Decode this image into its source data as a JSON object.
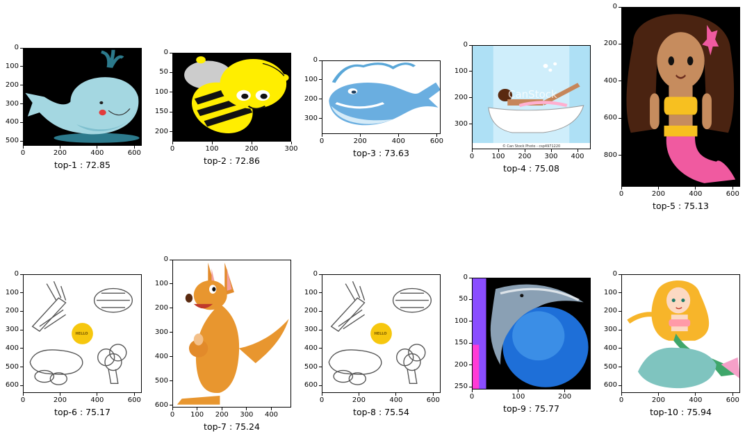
{
  "chart_data": [
    {
      "type": "image",
      "rank": 1,
      "score": 72.85,
      "caption": "top-1 : 72.85",
      "xticks": [
        0,
        200,
        400,
        600
      ],
      "yticks": [
        0,
        100,
        200,
        300,
        400,
        500
      ],
      "xlim": [
        0,
        640
      ],
      "ylim": [
        0,
        525
      ],
      "bg": "#000000",
      "icon": "cartoon-whale-icon"
    },
    {
      "type": "image",
      "rank": 2,
      "score": 72.86,
      "caption": "top-2 : 72.86",
      "xticks": [
        0,
        100,
        200,
        300
      ],
      "yticks": [
        0,
        50,
        100,
        150,
        200
      ],
      "xlim": [
        0,
        300
      ],
      "ylim": [
        0,
        225
      ],
      "bg": "#000000",
      "icon": "cartoon-bee-icon"
    },
    {
      "type": "image",
      "rank": 3,
      "score": 73.63,
      "caption": "top-3 : 73.63",
      "xticks": [
        0,
        200,
        400,
        600
      ],
      "yticks": [
        0,
        100,
        200,
        300
      ],
      "xlim": [
        0,
        620
      ],
      "ylim": [
        0,
        380
      ],
      "bg": "#ffffff",
      "icon": "blue-whale-icon"
    },
    {
      "type": "image",
      "rank": 4,
      "score": 75.08,
      "caption": "top-4 : 75.08",
      "xticks": [
        0,
        100,
        200,
        300,
        400
      ],
      "yticks": [
        0,
        100,
        200,
        300
      ],
      "xlim": [
        0,
        450
      ],
      "ylim": [
        0,
        395
      ],
      "bg": "#aee0f5",
      "icon": "bathtub-girl-icon",
      "watermark": "CanStock",
      "footer": "© Can Stock Photo - csp4971220"
    },
    {
      "type": "image",
      "rank": 5,
      "score": 75.13,
      "caption": "top-5 : 75.13",
      "xticks": [
        0,
        200,
        400,
        600
      ],
      "yticks": [
        0,
        200,
        400,
        600,
        800
      ],
      "xlim": [
        0,
        640
      ],
      "ylim": [
        0,
        970
      ],
      "bg": "#000000",
      "icon": "mermaid-girl-icon"
    },
    {
      "type": "image",
      "rank": 6,
      "score": 75.17,
      "caption": "top-6 : 75.17",
      "xticks": [
        0,
        200,
        400,
        600
      ],
      "yticks": [
        0,
        100,
        200,
        300,
        400,
        500,
        600
      ],
      "xlim": [
        0,
        640
      ],
      "ylim": [
        0,
        640
      ],
      "bg": "#ffffff",
      "icon": "vegetable-sketch-icon",
      "badge": "HELLO"
    },
    {
      "type": "image",
      "rank": 7,
      "score": 75.24,
      "caption": "top-7 : 75.24",
      "xticks": [
        0,
        100,
        200,
        300,
        400
      ],
      "yticks": [
        0,
        100,
        200,
        300,
        400,
        500,
        600
      ],
      "xlim": [
        0,
        480
      ],
      "ylim": [
        0,
        610
      ],
      "bg": "#ffffff",
      "icon": "kangaroo-icon"
    },
    {
      "type": "image",
      "rank": 8,
      "score": 75.54,
      "caption": "top-8 : 75.54",
      "xticks": [
        0,
        200,
        400,
        600
      ],
      "yticks": [
        0,
        100,
        200,
        300,
        400,
        500,
        600
      ],
      "xlim": [
        0,
        640
      ],
      "ylim": [
        0,
        640
      ],
      "bg": "#ffffff",
      "icon": "vegetable-sketch-icon",
      "badge": "HELLO"
    },
    {
      "type": "image",
      "rank": 9,
      "score": 75.77,
      "caption": "top-9 : 75.77",
      "xticks": [
        0,
        100,
        200
      ],
      "yticks": [
        0,
        50,
        100,
        150,
        200,
        250
      ],
      "xlim": [
        0,
        256
      ],
      "ylim": [
        0,
        256
      ],
      "bg": "#000000",
      "icon": "dolphin-globe-icon"
    },
    {
      "type": "image",
      "rank": 10,
      "score": 75.94,
      "caption": "top-10 : 75.94",
      "xticks": [
        0,
        200,
        400,
        600
      ],
      "yticks": [
        0,
        100,
        200,
        300,
        400,
        500,
        600
      ],
      "xlim": [
        0,
        640
      ],
      "ylim": [
        0,
        640
      ],
      "bg": "#ffffff",
      "icon": "mermaid-rock-icon"
    }
  ]
}
